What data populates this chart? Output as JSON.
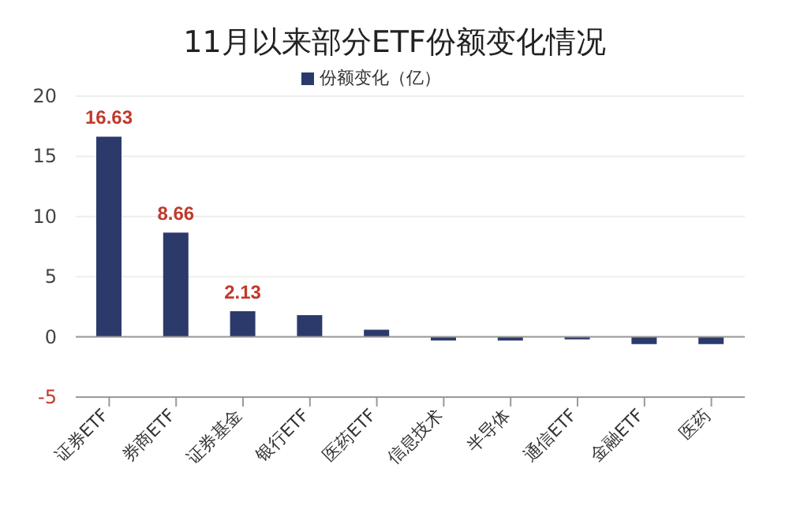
{
  "chart_data": {
    "type": "bar",
    "title": "11月以来部分ETF份额变化情况",
    "categories": [
      "证券ETF",
      "券商ETF",
      "证券基金",
      "银行ETF",
      "医药ETF",
      "信息技术",
      "半导体",
      "通信ETF",
      "金融ETF",
      "医药"
    ],
    "series": [
      {
        "name": "份额变化（亿）",
        "color": "#2b3a6b",
        "values": [
          16.63,
          8.66,
          2.13,
          1.8,
          0.6,
          -0.3,
          -0.3,
          -0.2,
          -0.6,
          -0.6
        ],
        "value_labels": [
          "16.63",
          "8.66",
          "2.13",
          null,
          null,
          null,
          null,
          null,
          null,
          null
        ]
      }
    ],
    "ylim": [
      -5,
      20
    ],
    "yticks": [
      -5,
      0,
      5,
      10,
      15,
      20
    ],
    "grid": "y",
    "legend": "top"
  }
}
